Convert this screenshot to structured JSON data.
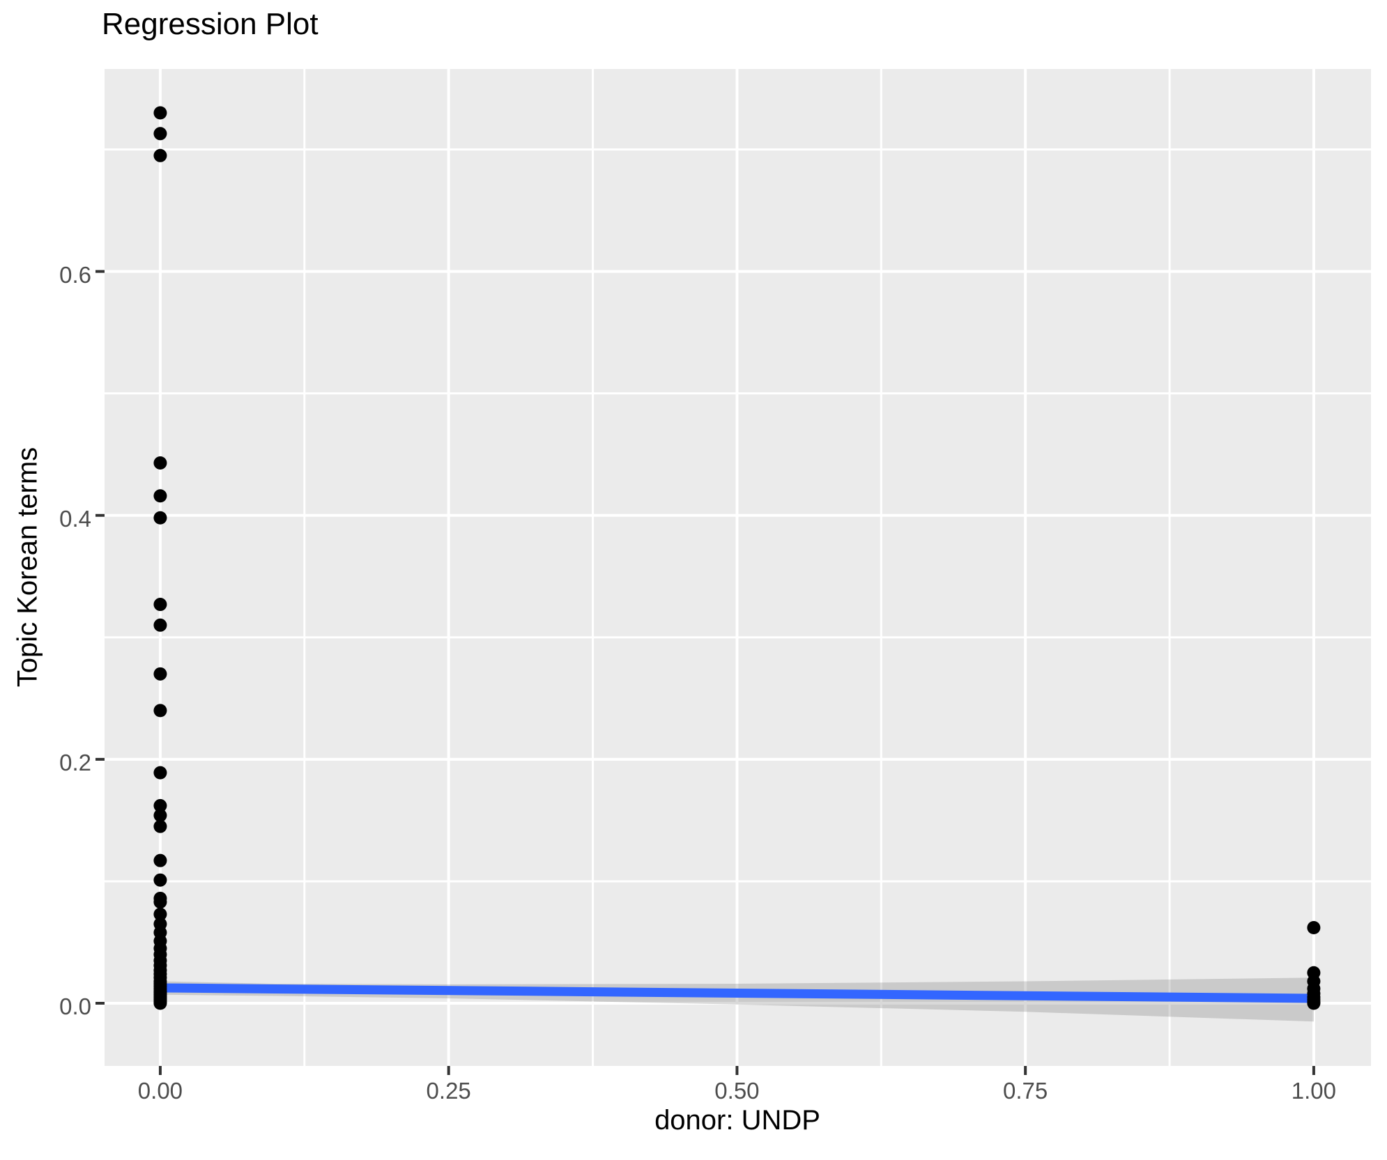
{
  "chart_data": {
    "type": "scatter",
    "title": "Regression Plot",
    "xlabel": "donor: UNDP",
    "ylabel": "Topic Korean terms",
    "xlim": [
      -0.0483,
      1.0496
    ],
    "ylim": [
      -0.0514,
      0.766
    ],
    "grid": true,
    "legend": false,
    "x_axis": {
      "major_ticks": [
        0,
        0.25,
        0.5,
        0.75,
        1.0
      ],
      "tick_labels": [
        "0.00",
        "0.25",
        "0.50",
        "0.75",
        "1.00"
      ],
      "minor_ticks": [
        0.125,
        0.375,
        0.625,
        0.875
      ]
    },
    "y_axis": {
      "major_ticks": [
        0,
        0.2,
        0.4,
        0.6
      ],
      "tick_labels": [
        "0.0",
        "0.2",
        "0.4",
        "0.6"
      ],
      "minor_ticks": [
        0.1,
        0.3,
        0.5,
        0.7
      ]
    },
    "series": [
      {
        "name": "points at donor=0",
        "x": 0,
        "y": [
          0.73,
          0.713,
          0.695,
          0.443,
          0.416,
          0.398,
          0.327,
          0.31,
          0.27,
          0.24,
          0.189,
          0.162,
          0.154,
          0.145,
          0.117,
          0.101,
          0.086,
          0.083,
          0.073,
          0.065,
          0.058,
          0.051,
          0.045,
          0.04,
          0.035,
          0.031,
          0.027,
          0.024,
          0.021,
          0.018,
          0.016,
          0.014,
          0.012,
          0.01,
          0.009,
          0.008,
          0.007,
          0.006,
          0.005,
          0.004,
          0.003,
          0.002,
          0.001,
          0.0
        ]
      },
      {
        "name": "points at donor=1",
        "x": 1,
        "y": [
          0.062,
          0.025,
          0.018,
          0.012,
          0.008,
          0.005,
          0.003,
          0.001,
          0.0
        ]
      }
    ],
    "regression_line": {
      "x": [
        0,
        1
      ],
      "y": [
        0.0126,
        0.004
      ]
    },
    "confidence_band": {
      "x": [
        0,
        0.1,
        0.25,
        0.5,
        0.75,
        1.0
      ],
      "upper": [
        0.018,
        0.016,
        0.0155,
        0.016,
        0.018,
        0.021
      ],
      "lower": [
        0.007,
        0.006,
        0.004,
        -0.001,
        -0.007,
        -0.015
      ]
    },
    "colors": {
      "panel_background": "#EBEBEB",
      "gridline": "#FFFFFF",
      "point": "#000000",
      "regression_line": "#3366FF",
      "confidence_band": "rgba(102,102,102,0.25)",
      "tick_label": "#4D4D4D",
      "tick_mark": "#333333",
      "title": "#000000"
    }
  }
}
